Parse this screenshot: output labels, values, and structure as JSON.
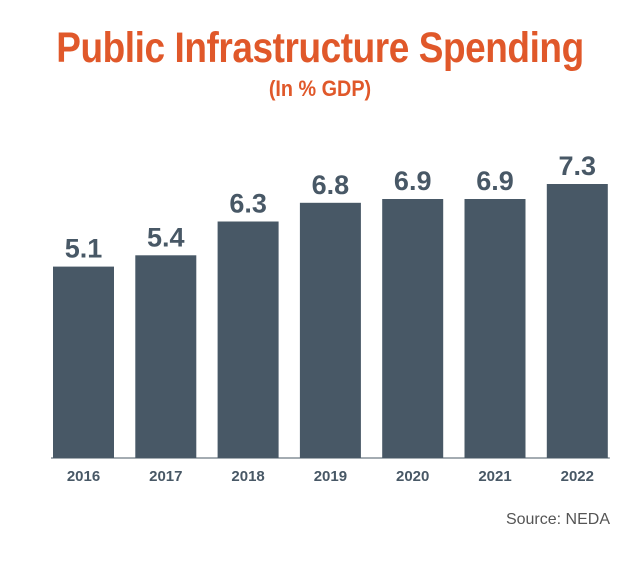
{
  "chart_data": {
    "type": "bar",
    "title": "Public Infrastructure Spending",
    "subtitle": "(In % GDP)",
    "categories": [
      "2016",
      "2017",
      "2018",
      "2019",
      "2020",
      "2021",
      "2022"
    ],
    "values": [
      5.1,
      5.4,
      6.3,
      6.8,
      6.9,
      6.9,
      7.3
    ],
    "value_labels": [
      "5.1",
      "5.4",
      "6.3",
      "6.8",
      "6.9",
      "6.9",
      "7.3"
    ],
    "xlabel": "",
    "ylabel": "",
    "ylim": [
      0,
      7.3
    ],
    "grid": false,
    "source": "Source: NEDA"
  },
  "colors": {
    "title": "#E0582A",
    "bar": "#485866",
    "value_text": "#485866",
    "tick_text": "#485866",
    "baseline": "#485866",
    "source_text": "#555555"
  }
}
